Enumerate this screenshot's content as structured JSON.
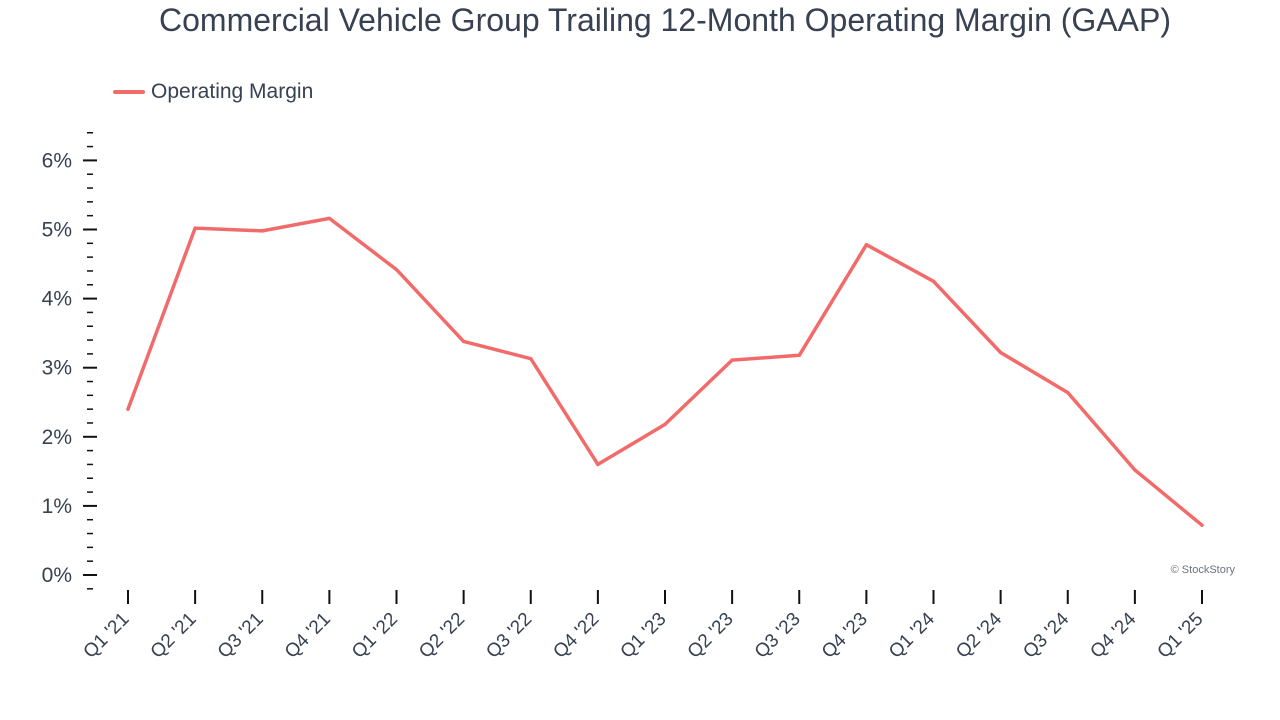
{
  "chart_data": {
    "type": "line",
    "title": "Commercial Vehicle Group Trailing 12-Month Operating Margin (GAAP)",
    "xlabel": "",
    "ylabel": "",
    "categories": [
      "Q1 '21",
      "Q2 '21",
      "Q3 '21",
      "Q4 '21",
      "Q1 '22",
      "Q2 '22",
      "Q3 '22",
      "Q4 '22",
      "Q1 '23",
      "Q2 '23",
      "Q3 '23",
      "Q4 '23",
      "Q1 '24",
      "Q2 '24",
      "Q3 '24",
      "Q4 '24",
      "Q1 '25"
    ],
    "series": [
      {
        "name": "Operating Margin",
        "color": "#f26b6b",
        "values": [
          2.4,
          5.02,
          4.98,
          5.16,
          4.42,
          3.38,
          3.13,
          1.6,
          2.18,
          3.11,
          3.18,
          4.78,
          4.25,
          3.22,
          2.64,
          1.52,
          0.72
        ]
      }
    ],
    "ylim": [
      -0.2,
      6.4
    ],
    "yticks": [
      0,
      1,
      2,
      3,
      4,
      5,
      6
    ],
    "ytick_labels": [
      "0%",
      "1%",
      "2%",
      "3%",
      "4%",
      "5%",
      "6%"
    ],
    "grid": false,
    "legend_position": "top-left"
  },
  "credit": "© StockStory"
}
